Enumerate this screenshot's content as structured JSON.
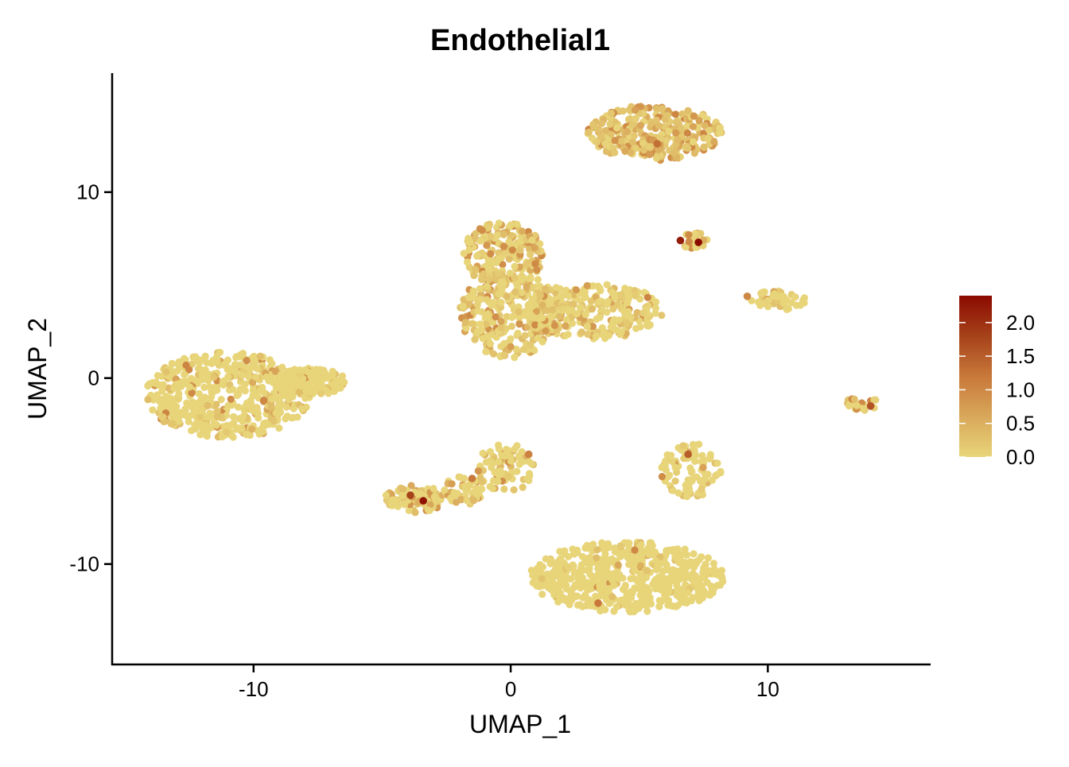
{
  "chart_data": {
    "type": "scatter",
    "title": "Endothelial1",
    "xlabel": "UMAP_1",
    "ylabel": "UMAP_2",
    "xlim": [
      -15.5,
      16.3
    ],
    "ylim": [
      -15.4,
      16.4
    ],
    "x_ticks": [
      -10,
      0,
      10
    ],
    "y_ticks": [
      -10,
      0,
      10
    ],
    "x_tick_labels": [
      "-10",
      "0",
      "10"
    ],
    "y_tick_labels": [
      "-10",
      "0",
      "10"
    ],
    "grid": false,
    "legend": {
      "placement": "right",
      "min": 0.0,
      "max": 2.4,
      "ticks": [
        0.0,
        0.5,
        1.0,
        1.5,
        2.0
      ],
      "tick_labels": [
        "0.0",
        "0.5",
        "1.0",
        "1.5",
        "2.0"
      ],
      "colors": [
        "#E8D57A",
        "#D9A85A",
        "#C8783A",
        "#A6421A",
        "#8B0A00"
      ]
    },
    "clusters": [
      {
        "cx": -11.0,
        "cy": -0.9,
        "rx": 3.2,
        "ry": 2.3,
        "n": 520,
        "mean_expr": 0.12
      },
      {
        "cx": -7.8,
        "cy": -0.2,
        "rx": 1.4,
        "ry": 0.75,
        "n": 120,
        "mean_expr": 0.06
      },
      {
        "cx": -0.3,
        "cy": 6.6,
        "rx": 1.6,
        "ry": 1.8,
        "n": 220,
        "mean_expr": 0.38
      },
      {
        "cx": 0.0,
        "cy": 3.4,
        "rx": 2.0,
        "ry": 2.3,
        "n": 280,
        "mean_expr": 0.28
      },
      {
        "cx": 3.2,
        "cy": 3.6,
        "rx": 2.7,
        "ry": 1.5,
        "n": 260,
        "mean_expr": 0.2
      },
      {
        "cx": 5.6,
        "cy": 13.2,
        "rx": 2.6,
        "ry": 1.5,
        "n": 300,
        "mean_expr": 0.45
      },
      {
        "cx": 7.1,
        "cy": 7.4,
        "rx": 0.55,
        "ry": 0.45,
        "n": 25,
        "mean_expr": 0.4
      },
      {
        "cx": 10.4,
        "cy": 4.2,
        "rx": 1.1,
        "ry": 0.55,
        "n": 45,
        "mean_expr": 0.15
      },
      {
        "cx": 13.7,
        "cy": -1.3,
        "rx": 0.6,
        "ry": 0.45,
        "n": 25,
        "mean_expr": 0.3
      },
      {
        "cx": 7.0,
        "cy": -4.9,
        "rx": 1.2,
        "ry": 1.5,
        "n": 90,
        "mean_expr": 0.12
      },
      {
        "cx": -0.2,
        "cy": -4.8,
        "rx": 1.2,
        "ry": 1.3,
        "n": 80,
        "mean_expr": 0.15
      },
      {
        "cx": -3.7,
        "cy": -6.5,
        "rx": 1.2,
        "ry": 0.75,
        "n": 90,
        "mean_expr": 0.25
      },
      {
        "cx": -1.8,
        "cy": -6.0,
        "rx": 0.8,
        "ry": 0.8,
        "n": 50,
        "mean_expr": 0.18
      },
      {
        "cx": 4.5,
        "cy": -10.7,
        "rx": 3.8,
        "ry": 1.9,
        "n": 560,
        "mean_expr": 0.04
      }
    ],
    "highlighted_points": [
      {
        "x": 7.3,
        "y": 7.3,
        "value": 2.4
      },
      {
        "x": 6.6,
        "y": 7.4,
        "value": 2.2
      },
      {
        "x": -3.4,
        "y": -6.6,
        "value": 2.3
      },
      {
        "x": -3.9,
        "y": -6.3,
        "value": 1.8
      },
      {
        "x": 14.0,
        "y": -1.5,
        "value": 1.6
      },
      {
        "x": 6.9,
        "y": -4.1,
        "value": 1.5
      },
      {
        "x": 5.7,
        "y": 12.6,
        "value": 1.3
      },
      {
        "x": -1.5,
        "y": -5.4,
        "value": 1.2
      },
      {
        "x": 3.4,
        "y": -12.1,
        "value": 1.2
      },
      {
        "x": 0.7,
        "y": -4.1,
        "value": 1.1
      },
      {
        "x": -9.6,
        "y": -1.2,
        "value": 1.0
      },
      {
        "x": 9.2,
        "y": 4.4,
        "value": 1.0
      }
    ]
  }
}
